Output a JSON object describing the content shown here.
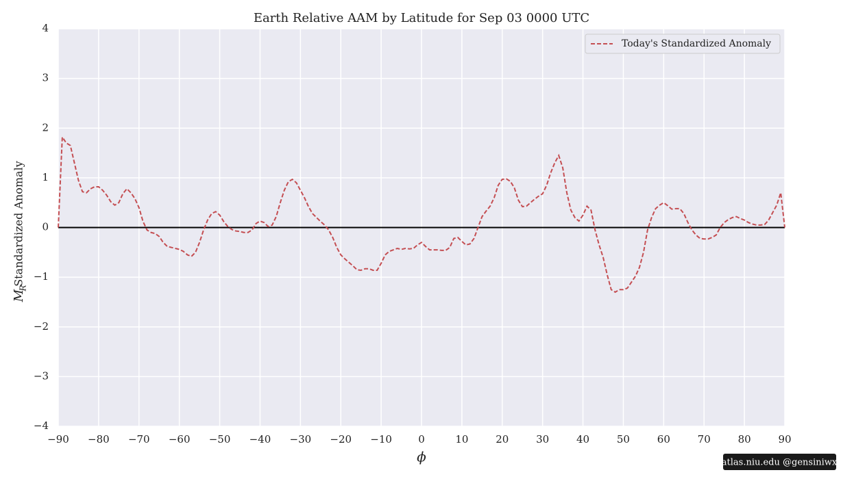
{
  "chart_data": {
    "type": "line",
    "title": "Earth Relative AAM by Latitude for Sep 03 0000 UTC",
    "xlabel": "ϕ",
    "ylabel_symbol": "M",
    "ylabel_subscript": "R",
    "ylabel": "Standardized Anomaly",
    "watermark": "atlas.niu.edu  @gensiniwx",
    "x": [
      -90,
      -89,
      -88,
      -87,
      -86,
      -85,
      -84,
      -83,
      -82,
      -81,
      -80,
      -79,
      -78,
      -77,
      -76,
      -75,
      -74,
      -73,
      -72,
      -71,
      -70,
      -69,
      -68,
      -67,
      -66,
      -65,
      -64,
      -63,
      -62,
      -61,
      -60,
      -59,
      -58,
      -57,
      -56,
      -55,
      -54,
      -53,
      -52,
      -51,
      -50,
      -49,
      -48,
      -47,
      -46,
      -45,
      -44,
      -43,
      -42,
      -41,
      -40,
      -39,
      -38,
      -37,
      -36,
      -35,
      -34,
      -33,
      -32,
      -31,
      -30,
      -29,
      -28,
      -27,
      -26,
      -25,
      -24,
      -23,
      -22,
      -21,
      -20,
      -19,
      -18,
      -17,
      -16,
      -15,
      -14,
      -13,
      -12,
      -11,
      -10,
      -9,
      -8,
      -7,
      -6,
      -5,
      -4,
      -3,
      -2,
      -1,
      0,
      1,
      2,
      3,
      4,
      5,
      6,
      7,
      8,
      9,
      10,
      11,
      12,
      13,
      14,
      15,
      16,
      17,
      18,
      19,
      20,
      21,
      22,
      23,
      24,
      25,
      26,
      27,
      28,
      29,
      30,
      31,
      32,
      33,
      34,
      35,
      36,
      37,
      38,
      39,
      40,
      41,
      42,
      43,
      44,
      45,
      46,
      47,
      48,
      49,
      50,
      51,
      52,
      53,
      54,
      55,
      56,
      57,
      58,
      59,
      60,
      61,
      62,
      63,
      64,
      65,
      66,
      67,
      68,
      69,
      70,
      71,
      72,
      73,
      74,
      75,
      76,
      77,
      78,
      79,
      80,
      81,
      82,
      83,
      84,
      85,
      86,
      87,
      88,
      89,
      90
    ],
    "series": [
      {
        "name": "Today's Standardized Anomaly",
        "color": "#c44e52",
        "dashed": true,
        "values": [
          0.0,
          1.82,
          1.7,
          1.65,
          1.3,
          0.95,
          0.72,
          0.7,
          0.78,
          0.82,
          0.82,
          0.75,
          0.65,
          0.52,
          0.45,
          0.5,
          0.68,
          0.78,
          0.7,
          0.58,
          0.4,
          0.12,
          -0.05,
          -0.1,
          -0.12,
          -0.18,
          -0.3,
          -0.38,
          -0.4,
          -0.42,
          -0.44,
          -0.48,
          -0.55,
          -0.58,
          -0.5,
          -0.3,
          -0.05,
          0.15,
          0.28,
          0.32,
          0.25,
          0.12,
          0.02,
          -0.04,
          -0.07,
          -0.08,
          -0.1,
          -0.1,
          -0.05,
          0.08,
          0.13,
          0.1,
          0.02,
          0.05,
          0.22,
          0.5,
          0.75,
          0.92,
          0.97,
          0.9,
          0.75,
          0.6,
          0.42,
          0.28,
          0.2,
          0.12,
          0.05,
          -0.05,
          -0.2,
          -0.4,
          -0.55,
          -0.63,
          -0.7,
          -0.77,
          -0.85,
          -0.86,
          -0.83,
          -0.83,
          -0.86,
          -0.86,
          -0.72,
          -0.55,
          -0.48,
          -0.45,
          -0.42,
          -0.44,
          -0.42,
          -0.43,
          -0.42,
          -0.35,
          -0.3,
          -0.38,
          -0.45,
          -0.45,
          -0.45,
          -0.46,
          -0.46,
          -0.4,
          -0.22,
          -0.2,
          -0.28,
          -0.35,
          -0.33,
          -0.22,
          0.0,
          0.22,
          0.33,
          0.43,
          0.6,
          0.85,
          0.97,
          0.98,
          0.93,
          0.8,
          0.55,
          0.42,
          0.43,
          0.5,
          0.57,
          0.63,
          0.68,
          0.85,
          1.1,
          1.3,
          1.45,
          1.2,
          0.7,
          0.35,
          0.2,
          0.13,
          0.25,
          0.43,
          0.35,
          -0.05,
          -0.35,
          -0.6,
          -0.95,
          -1.25,
          -1.3,
          -1.25,
          -1.25,
          -1.22,
          -1.1,
          -0.98,
          -0.8,
          -0.5,
          -0.05,
          0.2,
          0.38,
          0.45,
          0.5,
          0.44,
          0.37,
          0.38,
          0.38,
          0.28,
          0.1,
          -0.05,
          -0.15,
          -0.22,
          -0.23,
          -0.23,
          -0.2,
          -0.15,
          0.0,
          0.1,
          0.16,
          0.2,
          0.22,
          0.18,
          0.15,
          0.1,
          0.07,
          0.05,
          0.05,
          0.06,
          0.15,
          0.3,
          0.45,
          0.7,
          0.0
        ]
      }
    ],
    "xlim": [
      -90,
      90
    ],
    "xticks": [
      {
        "value": -90,
        "label": "−90"
      },
      {
        "value": -80,
        "label": "−80"
      },
      {
        "value": -70,
        "label": "−70"
      },
      {
        "value": -60,
        "label": "−60"
      },
      {
        "value": -50,
        "label": "−50"
      },
      {
        "value": -40,
        "label": "−40"
      },
      {
        "value": -30,
        "label": "−30"
      },
      {
        "value": -20,
        "label": "−20"
      },
      {
        "value": -10,
        "label": "−10"
      },
      0,
      10,
      20,
      30,
      40,
      50,
      60,
      70,
      80,
      90
    ],
    "ylim": [
      -4,
      4
    ],
    "yticks": [
      {
        "value": -4,
        "label": "−4"
      },
      {
        "value": -3,
        "label": "−3"
      },
      {
        "value": -2,
        "label": "−2"
      },
      {
        "value": -1,
        "label": "−1"
      },
      0,
      1,
      2,
      3,
      4
    ],
    "axhline": 0,
    "grid": true,
    "legend": "upper right"
  }
}
